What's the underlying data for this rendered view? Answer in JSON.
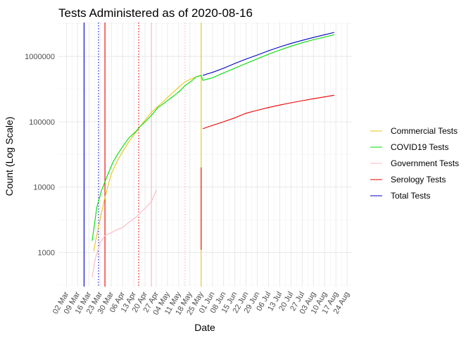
{
  "chart_data": {
    "type": "line",
    "title": "Tests Administered as of 2020-08-16",
    "xlabel": "Date",
    "ylabel": "Count (Log Scale)",
    "y_scale": "log10",
    "ylim": [
      300,
      3300000
    ],
    "xlim": [
      "2020-02-26",
      "2020-08-27"
    ],
    "grid": true,
    "legend_position": "right",
    "y_ticks": [
      1000,
      10000,
      100000,
      1000000
    ],
    "y_tick_labels": [
      "1000",
      "10000",
      "100000",
      "1000000"
    ],
    "x_ticks": [
      "2020-03-02",
      "2020-03-09",
      "2020-03-16",
      "2020-03-23",
      "2020-03-30",
      "2020-04-06",
      "2020-04-13",
      "2020-04-20",
      "2020-04-27",
      "2020-05-04",
      "2020-05-11",
      "2020-05-18",
      "2020-05-25",
      "2020-06-01",
      "2020-06-08",
      "2020-06-15",
      "2020-06-22",
      "2020-06-29",
      "2020-07-06",
      "2020-07-13",
      "2020-07-20",
      "2020-07-27",
      "2020-08-03",
      "2020-08-10",
      "2020-08-17",
      "2020-08-24"
    ],
    "x_tick_labels": [
      "02 Mar",
      "09 Mar",
      "16 Mar",
      "23 Mar",
      "30 Mar",
      "06 Apr",
      "13 Apr",
      "20 Apr",
      "27 Apr",
      "04 May",
      "11 May",
      "18 May",
      "25 May",
      "01 Jun",
      "08 Jun",
      "15 Jun",
      "22 Jun",
      "29 Jun",
      "06 Jul",
      "13 Jul",
      "20 Jul",
      "27 Jul",
      "03 Aug",
      "10 Aug",
      "17 Aug",
      "24 Aug"
    ],
    "series": [
      {
        "name": "Commercial Tests",
        "color": "#E6C619",
        "x": [
          "2020-03-19",
          "2020-03-22",
          "2020-03-26",
          "2020-03-30",
          "2020-04-03",
          "2020-04-10",
          "2020-04-17",
          "2020-04-24",
          "2020-05-01",
          "2020-05-08",
          "2020-05-15",
          "2020-05-22",
          "2020-05-25"
        ],
        "y": [
          1050,
          2500,
          7000,
          16000,
          26000,
          50000,
          85000,
          140000,
          200000,
          290000,
          410000,
          490000,
          510000
        ]
      },
      {
        "name": "COVID19 Tests",
        "color": "#00DD00",
        "x": [
          "2020-03-18",
          "2020-03-21",
          "2020-03-24",
          "2020-03-27",
          "2020-03-31",
          "2020-04-03",
          "2020-04-07",
          "2020-04-10",
          "2020-04-14",
          "2020-04-17",
          "2020-04-21",
          "2020-04-24",
          "2020-04-28",
          "2020-05-01",
          "2020-05-05",
          "2020-05-08",
          "2020-05-12",
          "2020-05-15",
          "2020-05-19",
          "2020-05-22",
          "2020-05-25",
          "2020-05-26",
          "2020-05-29",
          "2020-06-01",
          "2020-06-08",
          "2020-06-15",
          "2020-06-22",
          "2020-06-29",
          "2020-07-06",
          "2020-07-13",
          "2020-07-20",
          "2020-07-27",
          "2020-08-03",
          "2020-08-10",
          "2020-08-16"
        ],
        "y": [
          1500,
          5000,
          9000,
          14000,
          24000,
          32000,
          45000,
          57000,
          70000,
          85000,
          105000,
          125000,
          165000,
          185000,
          220000,
          250000,
          300000,
          360000,
          420000,
          490000,
          510000,
          430000,
          450000,
          470000,
          560000,
          660000,
          780000,
          920000,
          1080000,
          1250000,
          1430000,
          1620000,
          1800000,
          1980000,
          2150000
        ]
      },
      {
        "name": "Government Tests",
        "color": "#FFB6C1",
        "x": [
          "2020-03-18",
          "2020-03-20",
          "2020-03-23",
          "2020-03-26",
          "2020-03-30",
          "2020-04-02",
          "2020-04-06",
          "2020-04-10",
          "2020-04-14",
          "2020-04-17",
          "2020-04-21",
          "2020-04-24",
          "2020-04-27"
        ],
        "y": [
          420,
          800,
          1400,
          1800,
          2000,
          2200,
          2400,
          2900,
          3400,
          4000,
          5000,
          6000,
          9000
        ]
      },
      {
        "name": "Serology Tests",
        "color": "#EE0000",
        "x": [
          "2020-05-26",
          "2020-05-29",
          "2020-06-01",
          "2020-06-08",
          "2020-06-15",
          "2020-06-22",
          "2020-06-29",
          "2020-07-06",
          "2020-07-13",
          "2020-07-20",
          "2020-07-27",
          "2020-08-03",
          "2020-08-10",
          "2020-08-16"
        ],
        "y": [
          78000,
          83000,
          88000,
          100000,
          115000,
          135000,
          150000,
          165000,
          180000,
          195000,
          210000,
          225000,
          240000,
          255000
        ]
      },
      {
        "name": "Total Tests",
        "color": "#0000CC",
        "x": [
          "2020-05-26",
          "2020-05-29",
          "2020-06-01",
          "2020-06-08",
          "2020-06-15",
          "2020-06-22",
          "2020-06-29",
          "2020-07-06",
          "2020-07-13",
          "2020-07-20",
          "2020-07-27",
          "2020-08-03",
          "2020-08-10",
          "2020-08-16"
        ],
        "y": [
          510000,
          540000,
          570000,
          660000,
          780000,
          910000,
          1050000,
          1220000,
          1400000,
          1580000,
          1760000,
          1950000,
          2150000,
          2330000
        ]
      }
    ],
    "annotation_segments": [
      {
        "series": "Serology Tests",
        "color": "#EE0000",
        "x": "2020-05-25",
        "y_from": 1100,
        "y_to": 20000
      }
    ],
    "reference_lines": [
      {
        "x": "2020-03-13",
        "color": "#0000CC",
        "style": "solid"
      },
      {
        "x": "2020-03-22",
        "color": "#0000CC",
        "style": "dotted"
      },
      {
        "x": "2020-03-26",
        "color": "#EE0000",
        "style": "solid"
      },
      {
        "x": "2020-04-16",
        "color": "#EE0000",
        "style": "dotted"
      },
      {
        "x": "2020-04-24",
        "color": "#FFB6C1",
        "style": "solid"
      },
      {
        "x": "2020-05-15",
        "color": "#FFB6C1",
        "style": "dotted"
      },
      {
        "x": "2020-05-25",
        "color": "#E6C619",
        "style": "solid"
      }
    ]
  }
}
